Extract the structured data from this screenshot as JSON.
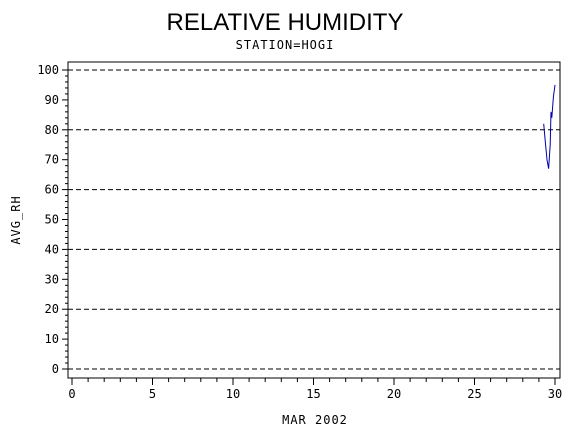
{
  "chart_data": {
    "type": "line",
    "title": "RELATIVE HUMIDITY",
    "subtitle": "STATION=HOGI",
    "xlabel": "MAR 2002",
    "ylabel": "AVG_RH",
    "xlim": [
      0,
      30
    ],
    "ylim": [
      0,
      100
    ],
    "x_ticks": [
      0,
      5,
      10,
      15,
      20,
      25,
      30
    ],
    "y_ticks": [
      0,
      10,
      20,
      30,
      40,
      50,
      60,
      70,
      80,
      90,
      100
    ],
    "grid_y": [
      0,
      20,
      40,
      60,
      80,
      100
    ],
    "series": [
      {
        "color": "#0000aa",
        "x": [
          29.3,
          29.4,
          29.5,
          29.6,
          29.7,
          29.75,
          29.8,
          29.9,
          30.0
        ],
        "y": [
          82,
          76,
          70,
          67,
          75,
          86,
          84,
          91,
          95
        ]
      }
    ]
  }
}
